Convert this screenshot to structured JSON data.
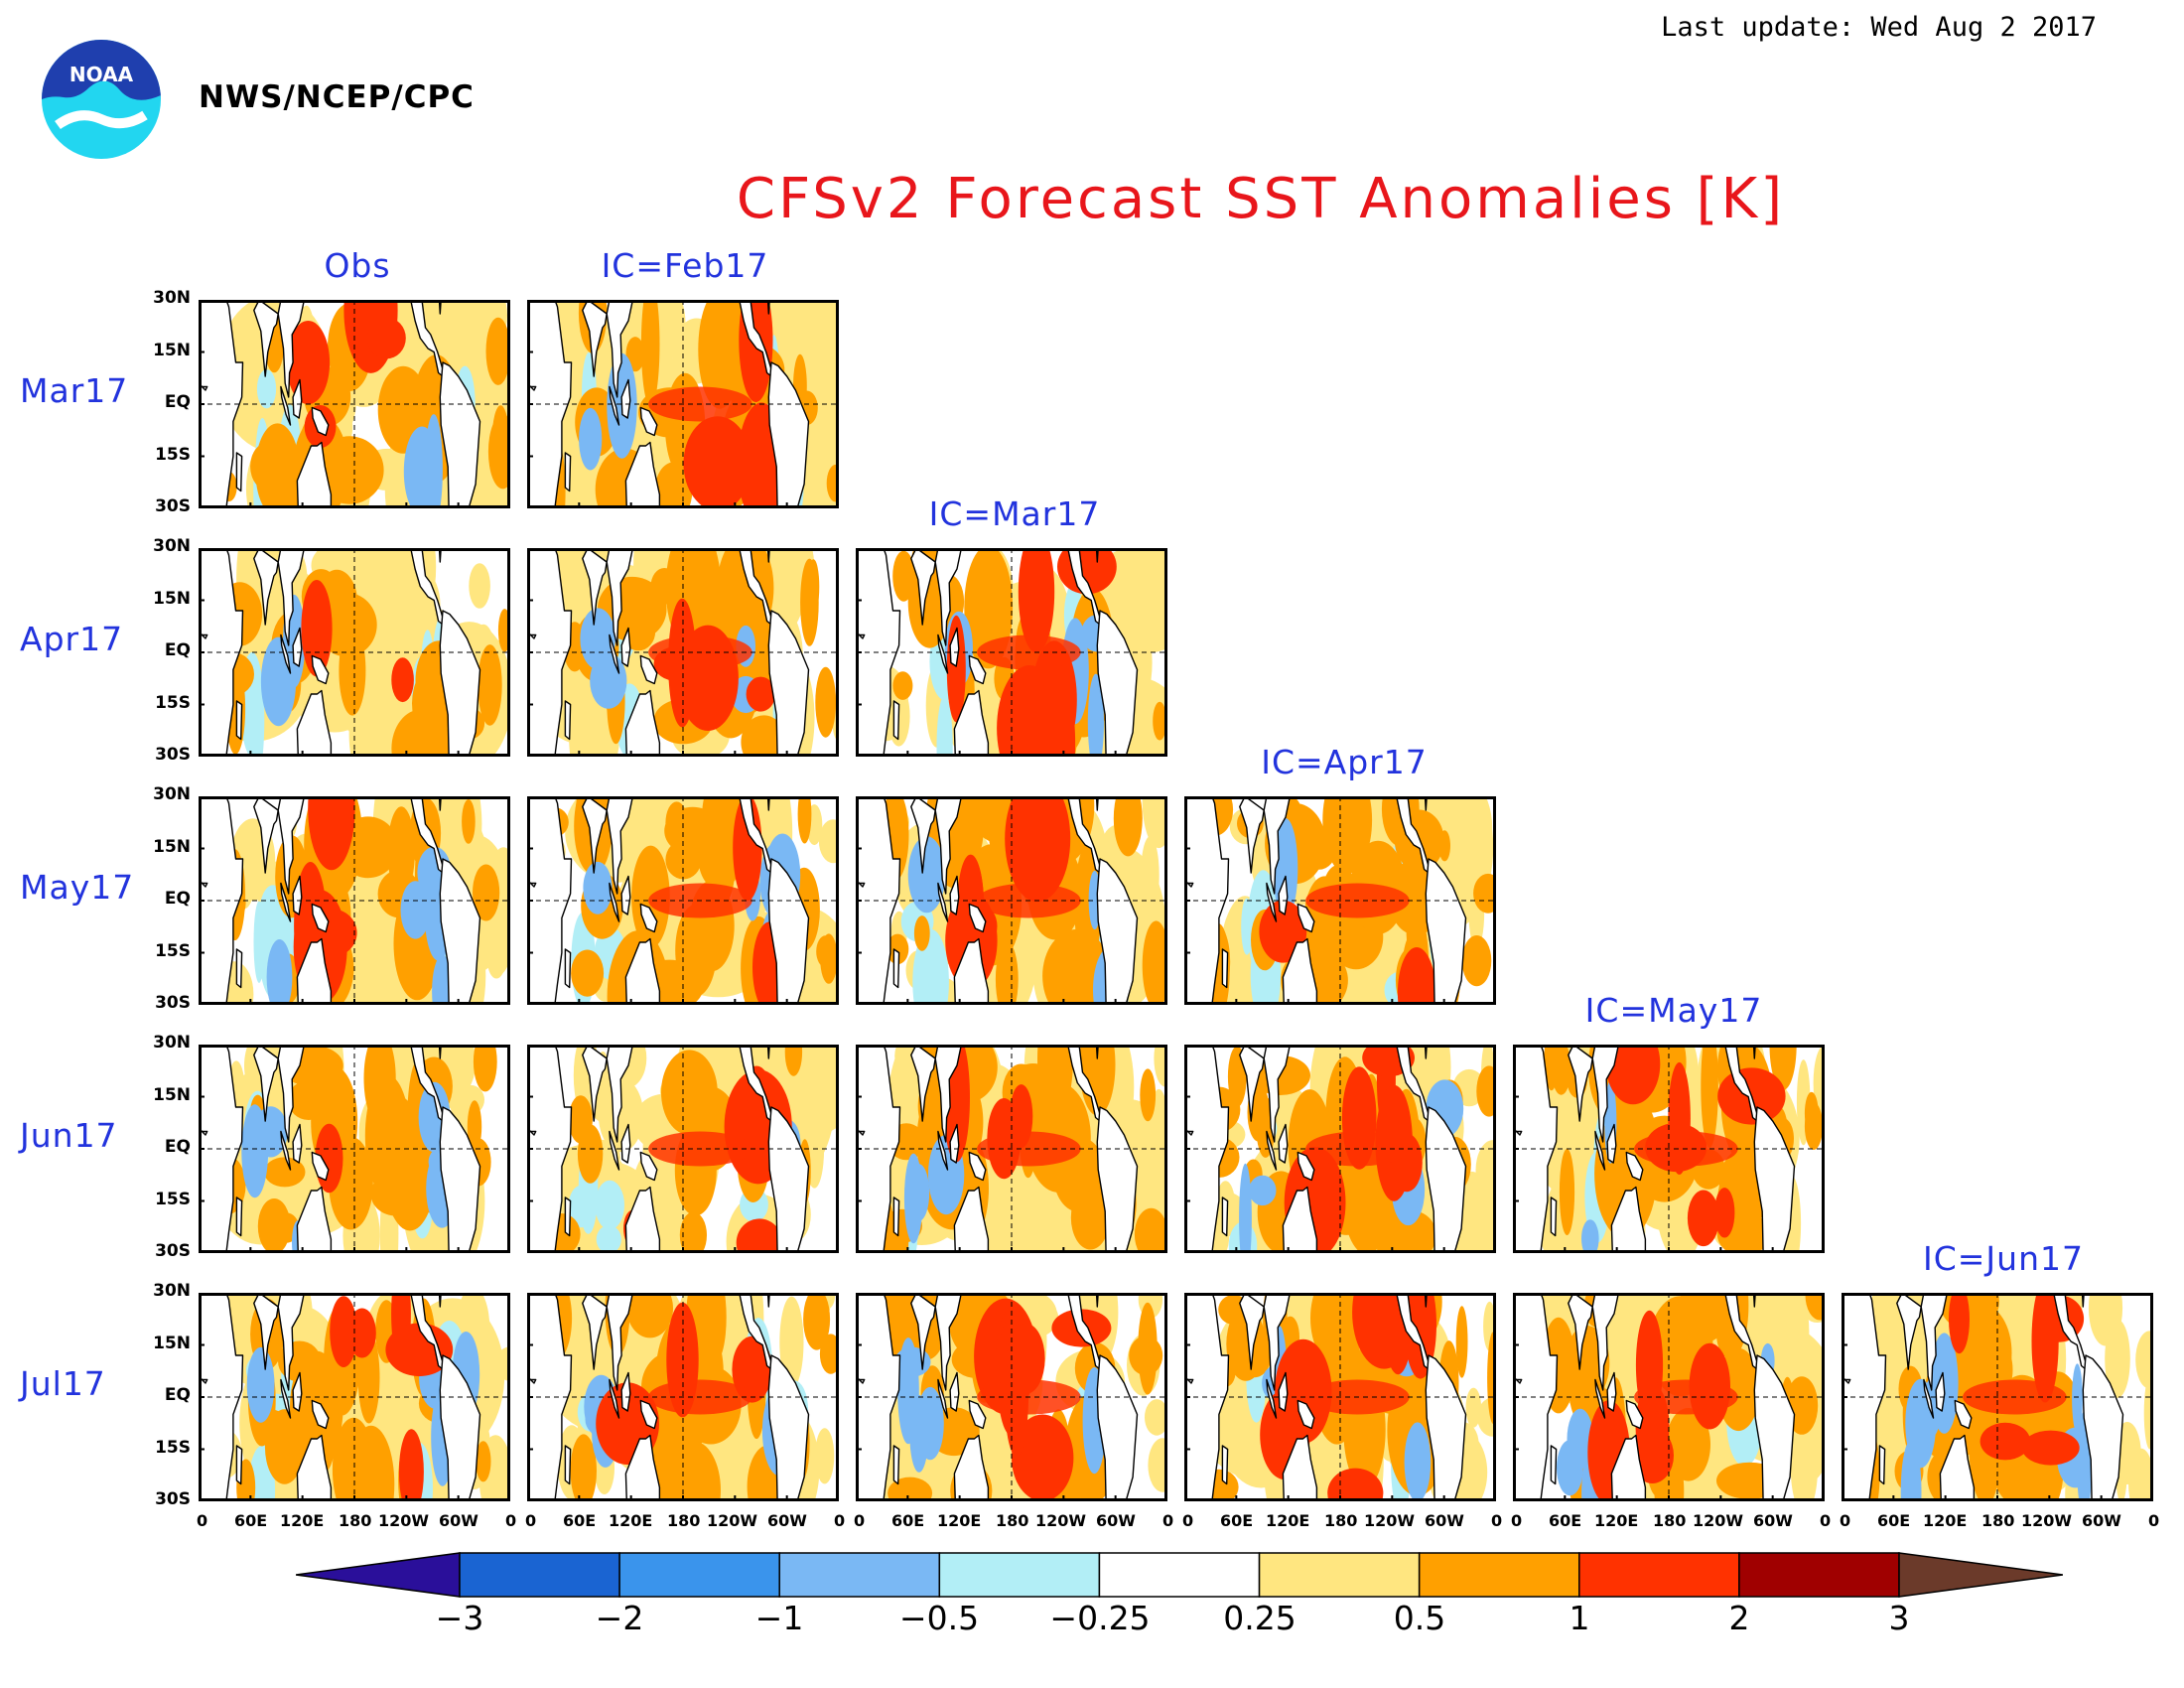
{
  "header": {
    "last_update": "Last update: Wed Aug 2 2017",
    "agency": "NWS/NCEP/CPC",
    "logo_text": "NOAA"
  },
  "chart_data": {
    "type": "heatmap",
    "title": "CFSv2 Forecast SST Anomalies [K]",
    "columns": [
      "Obs",
      "IC=Feb17",
      "IC=Mar17",
      "IC=Apr17",
      "IC=May17",
      "IC=Jun17"
    ],
    "rows": [
      "Mar17",
      "Apr17",
      "May17",
      "Jun17",
      "Jul17"
    ],
    "lat_ticks": [
      "30N",
      "15N",
      "EQ",
      "15S",
      "30S"
    ],
    "lon_ticks": [
      "0",
      "60E",
      "120E",
      "180",
      "120W",
      "60W",
      "0"
    ],
    "lat_range": [
      -30,
      30
    ],
    "lon_range": [
      0,
      360
    ],
    "panels": [
      {
        "row": "Mar17",
        "column": "Obs"
      },
      {
        "row": "Mar17",
        "column": "IC=Feb17"
      },
      {
        "row": "Apr17",
        "column": "Obs"
      },
      {
        "row": "Apr17",
        "column": "IC=Feb17"
      },
      {
        "row": "Apr17",
        "column": "IC=Mar17"
      },
      {
        "row": "May17",
        "column": "Obs"
      },
      {
        "row": "May17",
        "column": "IC=Feb17"
      },
      {
        "row": "May17",
        "column": "IC=Mar17"
      },
      {
        "row": "May17",
        "column": "IC=Apr17"
      },
      {
        "row": "Jun17",
        "column": "Obs"
      },
      {
        "row": "Jun17",
        "column": "IC=Feb17"
      },
      {
        "row": "Jun17",
        "column": "IC=Mar17"
      },
      {
        "row": "Jun17",
        "column": "IC=Apr17"
      },
      {
        "row": "Jun17",
        "column": "IC=May17"
      },
      {
        "row": "Jul17",
        "column": "Obs"
      },
      {
        "row": "Jul17",
        "column": "IC=Feb17"
      },
      {
        "row": "Jul17",
        "column": "IC=Mar17"
      },
      {
        "row": "Jul17",
        "column": "IC=Apr17"
      },
      {
        "row": "Jul17",
        "column": "IC=May17"
      },
      {
        "row": "Jul17",
        "column": "IC=Jun17"
      }
    ],
    "colorbar": {
      "levels": [
        "−3",
        "−2",
        "−1",
        "−0.5",
        "−0.25",
        "0.25",
        "0.5",
        "1",
        "2",
        "3"
      ],
      "colors": [
        "#2a0f9a",
        "#1a64d2",
        "#3a94ec",
        "#7ab8f4",
        "#b2eef6",
        "#ffffff",
        "#ffe680",
        "#ffa000",
        "#ff3200",
        "#a00000",
        "#6b3a2a"
      ]
    }
  }
}
